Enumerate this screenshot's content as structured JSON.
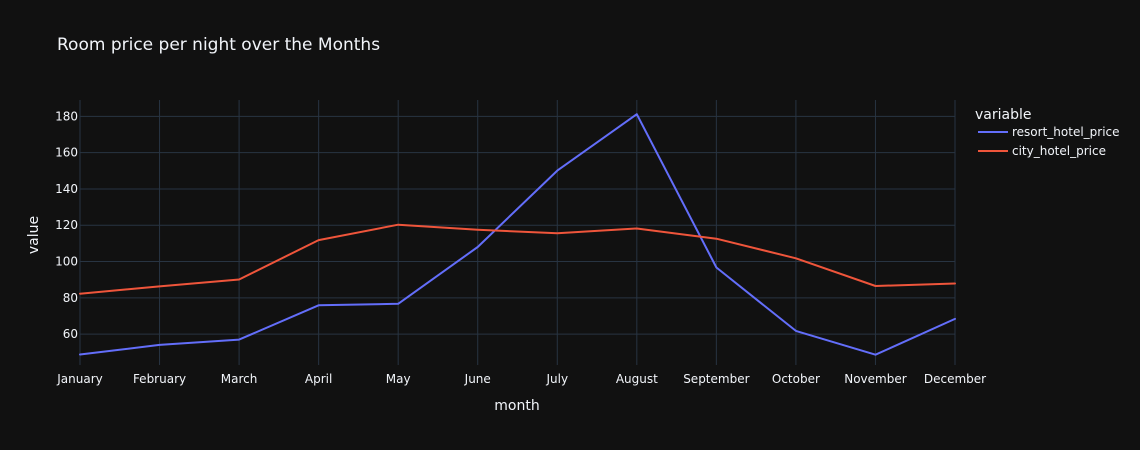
{
  "chart_data": {
    "type": "line",
    "title": "Room price per night over the Months",
    "xlabel": "month",
    "ylabel": "value",
    "categories": [
      "January",
      "February",
      "March",
      "April",
      "May",
      "June",
      "July",
      "August",
      "September",
      "October",
      "November",
      "December"
    ],
    "ylim": [
      43,
      189
    ],
    "yticks": [
      60,
      80,
      100,
      120,
      140,
      160,
      180
    ],
    "grid": true,
    "legend": {
      "title": "variable",
      "placement": "right"
    },
    "series": [
      {
        "name": "resort_hotel_price",
        "color": "#636efa",
        "values": [
          48.8,
          54.1,
          57.0,
          75.9,
          76.7,
          108.0,
          150.1,
          181.2,
          96.7,
          61.8,
          48.7,
          68.4
        ]
      },
      {
        "name": "city_hotel_price",
        "color": "#ef553b",
        "values": [
          82.3,
          86.3,
          90.1,
          111.8,
          120.3,
          117.5,
          115.6,
          118.2,
          112.6,
          101.8,
          86.5,
          87.9
        ]
      }
    ]
  }
}
